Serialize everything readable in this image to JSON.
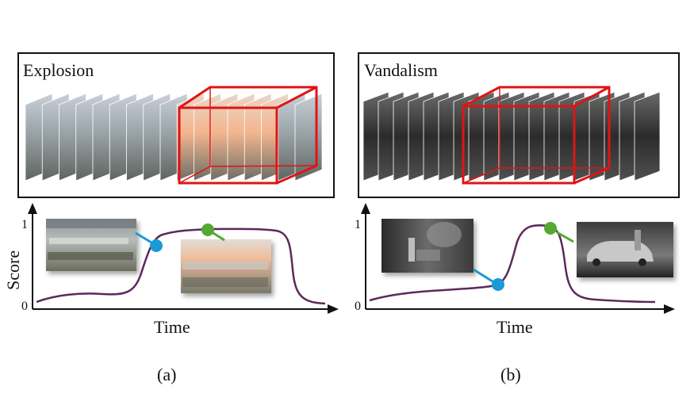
{
  "panels": [
    {
      "id": "a",
      "title": "Explosion",
      "x_label": "Time",
      "y_label": "Score",
      "y_tick_top": "1",
      "y_tick_bottom": "0",
      "caption": "(a)"
    },
    {
      "id": "b",
      "title": "Vandalism",
      "x_label": "Time",
      "y_tick_top": "1",
      "y_tick_bottom": "0",
      "caption": "(b)"
    }
  ],
  "colors": {
    "curve": "#5a2a5a",
    "highlight_box": "#e01414",
    "low_marker": "#1a9ad6",
    "high_marker": "#55a832",
    "frame": "#111111"
  },
  "icons": [
    "video-frame-stack",
    "score-curve"
  ]
}
